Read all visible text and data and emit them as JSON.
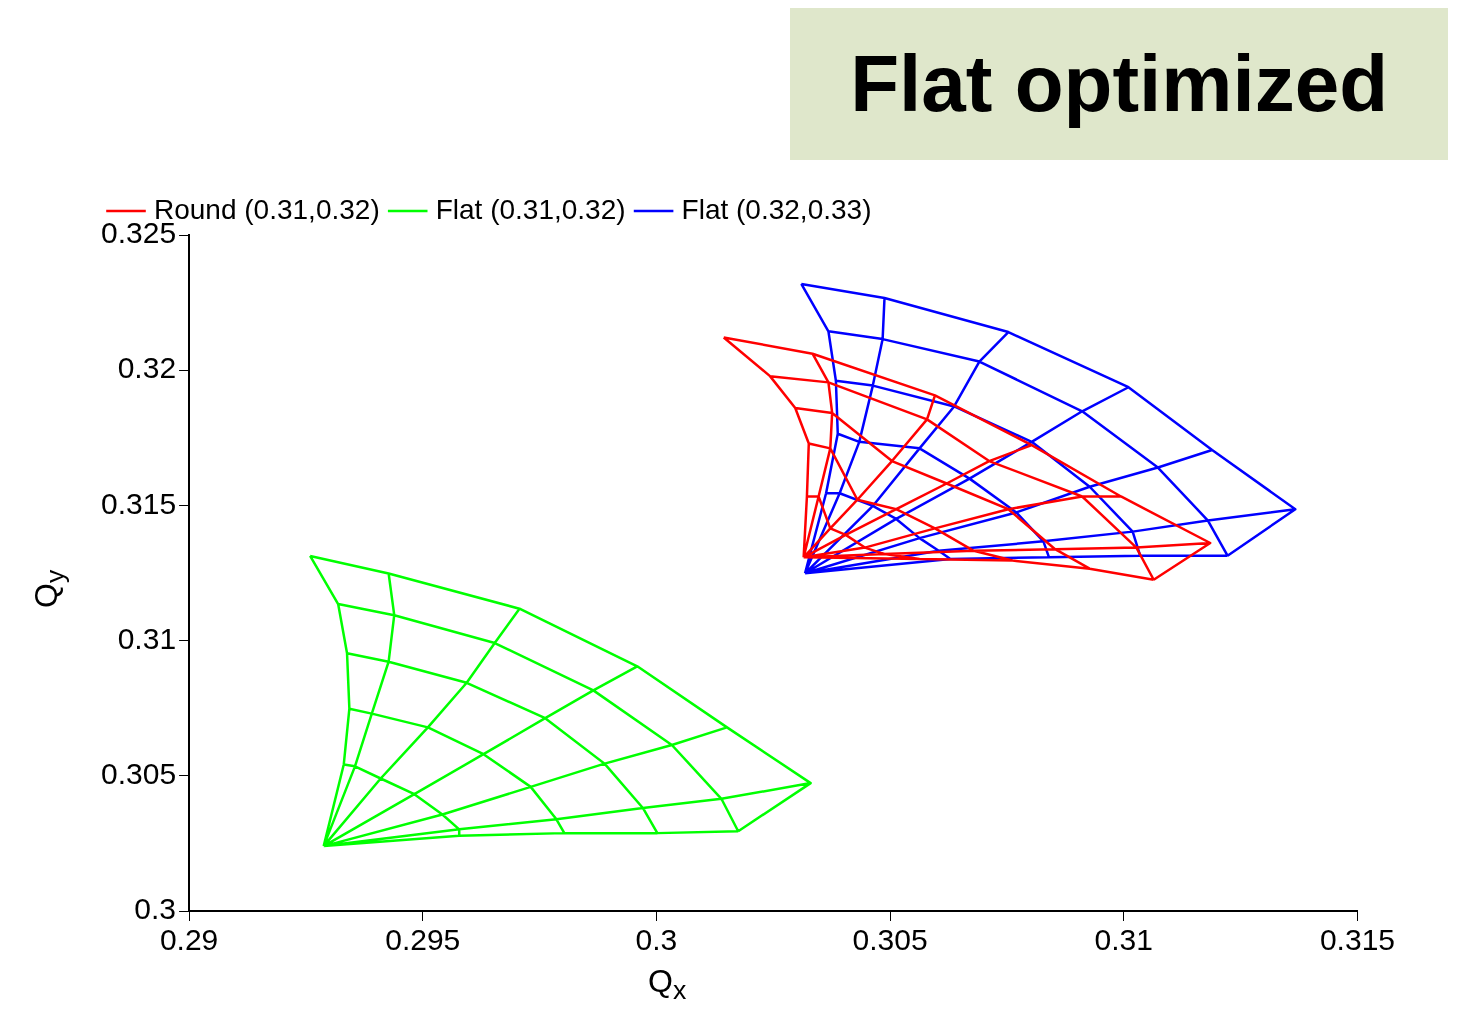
{
  "chart_data": {
    "type": "line",
    "title": "Flat optimized",
    "xlabel": "Q$_{x}$",
    "ylabel": "Q$_{y}$",
    "xlim": [
      0.29,
      0.315
    ],
    "xticks": [
      0.29,
      0.295,
      0.3,
      0.305,
      0.31,
      0.315
    ],
    "ylim": [
      0.3,
      0.325
    ],
    "yticks": [
      0.3,
      0.305,
      0.31,
      0.315,
      0.32,
      0.325
    ],
    "grid": false,
    "legend": "top left",
    "series": [
      {
        "name": "Round (0.31,0.32)",
        "color": "#ff0000",
        "x": [
          0.30144,
          0.30243,
          0.30297,
          0.30326,
          0.30322,
          0.30315,
          null,
          0.30334,
          0.30368,
          0.30376,
          0.30372,
          0.30347,
          0.30315,
          null,
          0.30596,
          0.30579,
          0.30504,
          0.3043,
          0.30372,
          0.30315,
          null,
          0.30803,
          0.30712,
          0.30621,
          0.30513,
          0.30405,
          0.30315,
          null,
          0.30994,
          0.30911,
          0.30753,
          0.30596,
          0.30446,
          0.30315,
          null,
          0.31185,
          0.31027,
          0.30853,
          0.30679,
          0.30488,
          0.30315,
          null,
          0.31064,
          0.30927,
          0.30762,
          0.30563,
          0.30315,
          null,
          0.30144,
          0.30334,
          0.30596,
          0.30803,
          0.30994,
          0.31185,
          0.31064,
          null,
          0.30243,
          0.30368,
          0.30579,
          0.30712,
          0.30911,
          0.31027,
          0.31064,
          null,
          0.30297,
          0.30376,
          0.30504,
          0.30621,
          0.30753,
          0.30853,
          0.30927,
          null,
          0.30326,
          0.30372,
          0.3043,
          0.30513,
          0.30596,
          0.30679,
          0.30762,
          null,
          0.30322,
          0.30347,
          0.30372,
          0.30405,
          0.30446,
          0.30488,
          0.30563
        ],
        "values": [
          0.32121,
          0.31978,
          0.3186,
          0.31729,
          0.31533,
          0.31308,
          null,
          0.32061,
          0.31955,
          0.31842,
          0.31711,
          0.31533,
          0.31308,
          null,
          0.31907,
          0.31818,
          0.31664,
          0.31521,
          0.31415,
          0.31308,
          null,
          0.31723,
          0.31664,
          0.31581,
          0.31486,
          0.31391,
          0.31308,
          null,
          0.31533,
          0.31533,
          0.31486,
          0.31415,
          0.31344,
          0.31308,
          null,
          0.31361,
          0.31344,
          0.31338,
          0.31332,
          0.3132,
          0.31308,
          null,
          0.31225,
          0.31266,
          0.31296,
          0.31302,
          0.31308,
          null,
          0.32121,
          0.32061,
          0.31907,
          0.31723,
          0.31533,
          0.31361,
          0.31225,
          null,
          0.31978,
          0.31955,
          0.31818,
          0.31664,
          0.31533,
          0.31344,
          0.31225,
          null,
          0.3186,
          0.31842,
          0.31664,
          0.31581,
          0.31486,
          0.31338,
          0.31266,
          null,
          0.31729,
          0.31711,
          0.31521,
          0.31486,
          0.31415,
          0.31332,
          0.31296,
          null,
          0.31533,
          0.31533,
          0.31415,
          0.31391,
          0.31344,
          0.3132,
          0.31302
        ]
      },
      {
        "name": "Flat (0.31,0.32)",
        "color": "#00ff00",
        "x": [
          0.29259,
          0.29319,
          0.29338,
          0.29343,
          0.29331,
          0.29288,
          null,
          0.29427,
          0.29439,
          0.29427,
          0.29391,
          0.29355,
          0.29288,
          null,
          0.29707,
          0.29654,
          0.29594,
          0.29511,
          0.2941,
          0.29288,
          null,
          0.29959,
          0.29865,
          0.29762,
          0.2963,
          0.29482,
          0.29288,
          null,
          0.30151,
          0.30033,
          0.29889,
          0.29731,
          0.29542,
          0.29288,
          null,
          0.3033,
          0.30139,
          0.29971,
          0.29786,
          0.29578,
          0.29288,
          null,
          0.30175,
          0.30002,
          0.29803,
          0.29578,
          0.29288,
          null,
          0.29259,
          0.29427,
          0.29707,
          0.29959,
          0.30151,
          0.3033,
          0.30175,
          null,
          0.29319,
          0.29439,
          0.29654,
          0.29865,
          0.30033,
          0.30139,
          0.30175,
          null,
          0.29338,
          0.29427,
          0.29594,
          0.29762,
          0.29889,
          0.29971,
          0.30002,
          null,
          0.29343,
          0.29391,
          0.29511,
          0.2963,
          0.29731,
          0.29786,
          0.29803,
          null,
          0.29331,
          0.29355,
          0.2941,
          0.29482,
          0.29542,
          0.29578,
          0.29578
        ],
        "values": [
          0.31313,
          0.31135,
          0.30953,
          0.30748,
          0.30542,
          0.3024,
          null,
          0.31248,
          0.31094,
          0.30922,
          0.3073,
          0.30535,
          0.3024,
          null,
          0.31118,
          0.30991,
          0.30844,
          0.30679,
          0.3049,
          0.3024,
          null,
          0.30905,
          0.30816,
          0.30713,
          0.3058,
          0.30432,
          0.3024,
          null,
          0.30679,
          0.30614,
          0.30545,
          0.30459,
          0.30357,
          0.3024,
          null,
          0.30473,
          0.30415,
          0.30381,
          0.30339,
          0.30302,
          0.3024,
          null,
          0.30295,
          0.30288,
          0.30288,
          0.30278,
          0.3024,
          null,
          0.31313,
          0.31248,
          0.31118,
          0.30905,
          0.30679,
          0.30473,
          0.30295,
          null,
          0.31135,
          0.31094,
          0.30991,
          0.30816,
          0.30614,
          0.30415,
          0.30295,
          null,
          0.30953,
          0.30922,
          0.30844,
          0.30713,
          0.30545,
          0.30381,
          0.30288,
          null,
          0.30748,
          0.3073,
          0.30679,
          0.3058,
          0.30459,
          0.30339,
          0.30288,
          null,
          0.30542,
          0.30535,
          0.3049,
          0.30432,
          0.30357,
          0.30302,
          0.30278
        ]
      },
      {
        "name": "Flat (0.32,0.33)",
        "color": "#0000ff",
        "x": [
          0.3031,
          0.30368,
          0.30384,
          0.30388,
          0.30363,
          0.30318,
          null,
          0.30488,
          0.30484,
          0.30463,
          0.30434,
          0.30392,
          0.30318,
          null,
          0.30753,
          0.30691,
          0.30637,
          0.30563,
          0.30463,
          0.30318,
          null,
          0.3101,
          0.30911,
          0.30803,
          0.3067,
          0.30513,
          0.30318,
          null,
          0.31189,
          0.31073,
          0.30927,
          0.3077,
          0.30563,
          0.30318,
          null,
          0.31367,
          0.3118,
          0.31019,
          0.30828,
          0.30604,
          0.30318,
          null,
          0.31222,
          0.31035,
          0.3084,
          0.30629,
          0.30318,
          null,
          0.3031,
          0.30488,
          0.30753,
          0.3101,
          0.31189,
          0.31367,
          0.31222,
          null,
          0.30368,
          0.30484,
          0.30691,
          0.30911,
          0.31073,
          0.3118,
          0.31222,
          null,
          0.30384,
          0.30463,
          0.30637,
          0.30803,
          0.30927,
          0.31019,
          0.31035,
          null,
          0.30388,
          0.30434,
          0.30563,
          0.3067,
          0.3077,
          0.30828,
          0.3084,
          null,
          0.30363,
          0.30392,
          0.30463,
          0.30513,
          0.30563,
          0.30604,
          0.30629
        ],
        "values": [
          0.32319,
          0.32144,
          0.31961,
          0.31765,
          0.31545,
          0.31249,
          null,
          0.32267,
          0.32115,
          0.31943,
          0.31735,
          0.31545,
          0.31249,
          null,
          0.32141,
          0.32032,
          0.31866,
          0.31711,
          0.31498,
          0.31249,
          null,
          0.31937,
          0.31848,
          0.31735,
          0.31599,
          0.3145,
          0.31249,
          null,
          0.31705,
          0.3164,
          0.31569,
          0.31474,
          0.31379,
          0.31249,
          null,
          0.31486,
          0.31444,
          0.31403,
          0.31367,
          0.31332,
          0.31249,
          null,
          0.31314,
          0.31314,
          0.31308,
          0.31302,
          0.31249,
          null,
          0.32319,
          0.32267,
          0.32141,
          0.31937,
          0.31705,
          0.31486,
          0.31314,
          null,
          0.32144,
          0.32115,
          0.32032,
          0.31848,
          0.3164,
          0.31444,
          0.31314,
          null,
          0.31961,
          0.31943,
          0.31866,
          0.31735,
          0.31569,
          0.31403,
          0.31314,
          null,
          0.31765,
          0.31735,
          0.31711,
          0.31599,
          0.31474,
          0.31367,
          0.31308,
          null,
          0.31545,
          0.31545,
          0.31498,
          0.3145,
          0.31379,
          0.31332,
          0.31302
        ]
      }
    ]
  }
}
